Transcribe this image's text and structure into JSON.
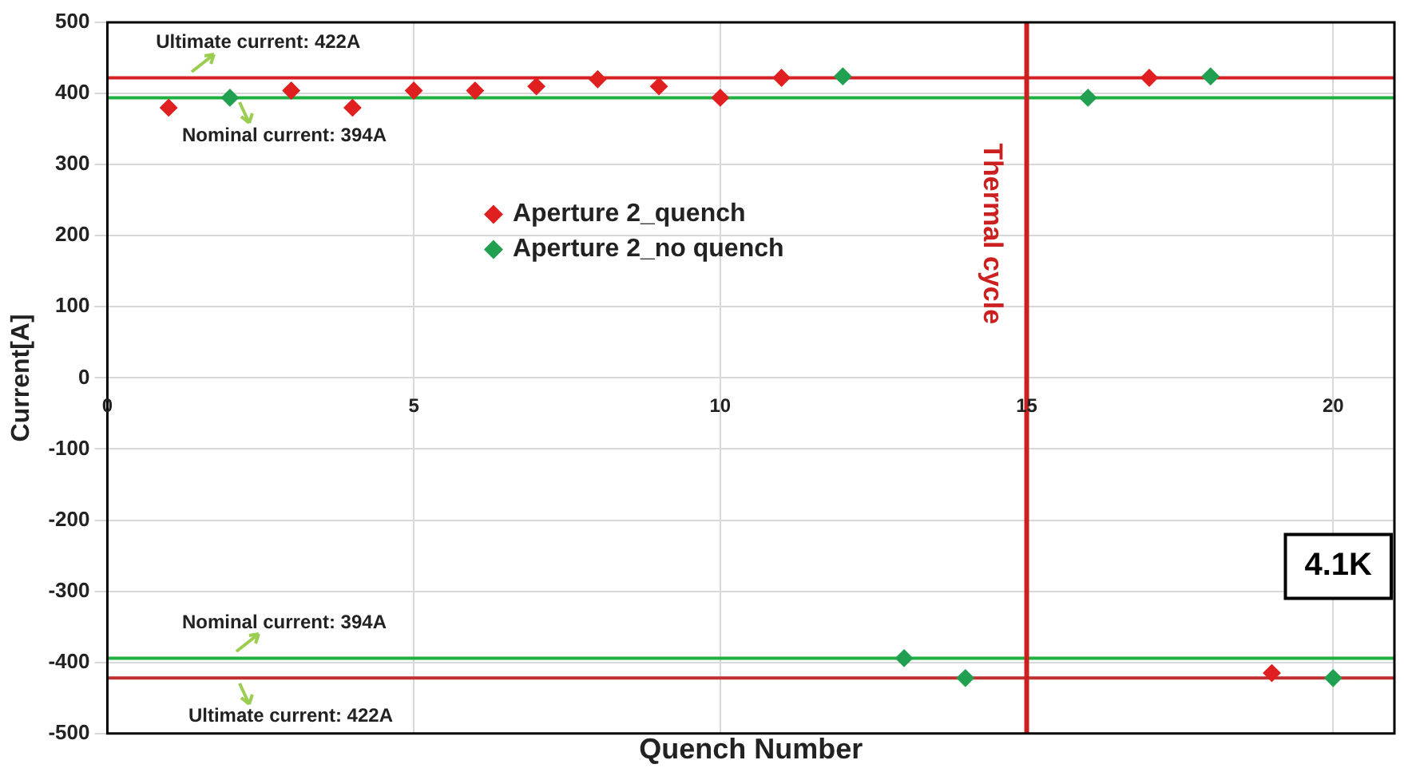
{
  "chart_data": {
    "type": "scatter",
    "xlabel": "Quench Number",
    "ylabel": "Current[A]",
    "xlim": [
      0,
      21
    ],
    "xticks": [
      0,
      5,
      10,
      15,
      20
    ],
    "ylim": [
      -500,
      500
    ],
    "yticks": [
      -500,
      -400,
      -300,
      -200,
      -100,
      0,
      100,
      200,
      300,
      400,
      500
    ],
    "grid": true,
    "legend": "top",
    "marker": "diamond",
    "series": [
      {
        "name": "Aperture 2_quench",
        "color": "#e02020",
        "x": [
          1,
          3,
          4,
          5,
          6,
          7,
          8,
          9,
          10,
          11,
          17,
          19
        ],
        "values": [
          380,
          404,
          380,
          404,
          404,
          410,
          420,
          410,
          394,
          422,
          422,
          -415
        ]
      },
      {
        "name": "Aperture 2_no quench",
        "color": "#20a050",
        "x": [
          2,
          12,
          13,
          14,
          16,
          18,
          20
        ],
        "values": [
          394,
          424,
          -394,
          -422,
          394,
          424,
          -422
        ]
      }
    ],
    "ref_lines": [
      {
        "axis": "y",
        "value": 422,
        "label": null,
        "color": "#d42020"
      },
      {
        "axis": "y",
        "value": 394,
        "label": null,
        "color": "#20b040"
      },
      {
        "axis": "y",
        "value": -394,
        "label": null,
        "color": "#20b040"
      },
      {
        "axis": "y",
        "value": -422,
        "label": null,
        "color": "#c03030"
      },
      {
        "axis": "x",
        "value": 15,
        "label": "Thermal cycle",
        "color": "#cc2020"
      }
    ],
    "annotations": [
      {
        "text": "Ultimate current: 422A",
        "y": 422
      },
      {
        "text": "Nominal current: 394A",
        "y": 394
      },
      {
        "text": "Nominal current: 394A",
        "y": -394
      },
      {
        "text": "Ultimate current: 422A",
        "y": -422
      },
      "4.1K"
    ]
  }
}
